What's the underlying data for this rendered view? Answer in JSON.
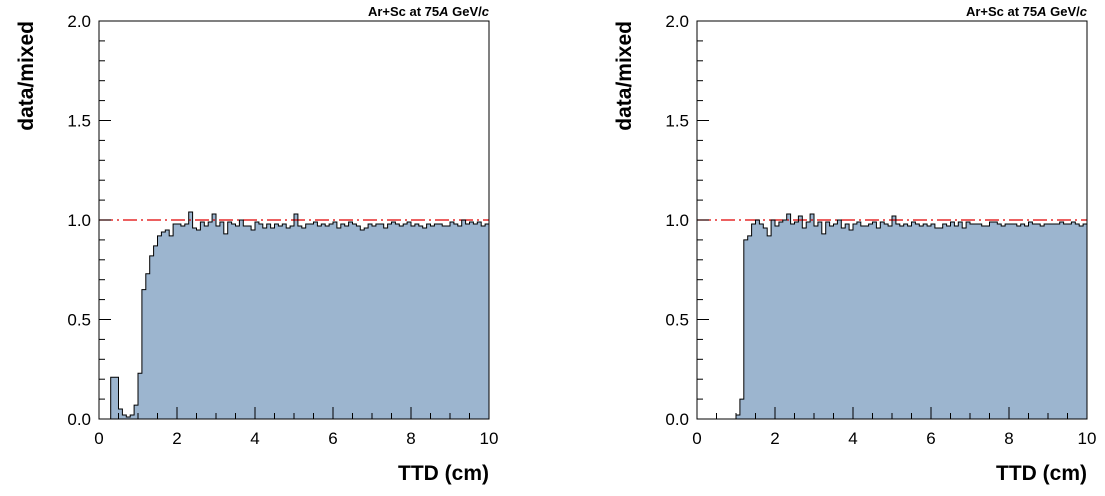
{
  "chart_data": [
    {
      "type": "area",
      "annotation": {
        "prefix": "Ar+Sc at 75",
        "italic_a": "A",
        "mid": " GeV/",
        "italic_c": "c"
      },
      "xlabel": "TTD (cm)",
      "ylabel": "data/mixed",
      "xlim": [
        0,
        10
      ],
      "ylim": [
        0,
        2
      ],
      "xticks": [
        "0",
        "2",
        "4",
        "6",
        "8",
        "10"
      ],
      "yticks": [
        "0.0",
        "0.5",
        "1.0",
        "1.5",
        "2.0"
      ],
      "reference_line": 1.0,
      "bin_width": 0.1,
      "values": [
        0,
        0,
        0,
        0.21,
        0.21,
        0.05,
        0.02,
        0.01,
        0.02,
        0.07,
        0.23,
        0.65,
        0.73,
        0.82,
        0.87,
        0.92,
        0.94,
        0.95,
        0.92,
        0.98,
        0.98,
        0.97,
        0.98,
        1.04,
        0.96,
        0.95,
        0.99,
        0.97,
        0.99,
        1.03,
        0.97,
        0.99,
        0.93,
        0.99,
        0.98,
        0.97,
        1.0,
        0.97,
        0.97,
        0.95,
        0.99,
        0.98,
        0.96,
        0.98,
        0.96,
        0.98,
        0.97,
        0.98,
        0.96,
        0.97,
        1.03,
        0.97,
        0.96,
        0.98,
        0.98,
        0.99,
        0.97,
        0.98,
        0.97,
        0.98,
        0.99,
        0.96,
        0.98,
        0.97,
        0.99,
        0.98,
        0.97,
        0.95,
        0.96,
        0.98,
        0.97,
        0.98,
        0.98,
        0.96,
        0.98,
        0.99,
        0.98,
        0.97,
        0.98,
        0.99,
        0.97,
        0.98,
        0.97,
        0.96,
        0.98,
        0.97,
        0.98,
        0.98,
        0.97,
        0.97,
        0.99,
        0.98,
        0.97,
        1.0,
        0.98,
        0.99,
        0.98,
        0.99,
        0.97,
        0.98
      ],
      "fill_color": "#9cb5cf",
      "line_color": "#000000",
      "reference_color": "#e00000"
    },
    {
      "type": "area",
      "annotation": {
        "prefix": "Ar+Sc at 75",
        "italic_a": "A",
        "mid": " GeV/",
        "italic_c": "c"
      },
      "xlabel": "TTD (cm)",
      "ylabel": "data/mixed",
      "xlim": [
        0,
        10
      ],
      "ylim": [
        0,
        2
      ],
      "xticks": [
        "0",
        "2",
        "4",
        "6",
        "8",
        "10"
      ],
      "yticks": [
        "0.0",
        "0.5",
        "1.0",
        "1.5",
        "2.0"
      ],
      "reference_line": 1.0,
      "bin_width": 0.1,
      "values": [
        0,
        0,
        0,
        0,
        0,
        0,
        0,
        0,
        0,
        0,
        0.02,
        0.1,
        0.9,
        0.92,
        0.98,
        1.0,
        0.98,
        0.96,
        0.92,
        1.0,
        0.97,
        0.99,
        1.0,
        1.03,
        0.98,
        0.99,
        1.02,
        0.96,
        0.99,
        1.03,
        0.97,
        0.99,
        0.93,
        0.99,
        0.97,
        0.98,
        1.0,
        0.96,
        0.98,
        0.95,
        0.98,
        0.99,
        0.97,
        0.97,
        0.98,
        0.99,
        0.96,
        0.99,
        0.98,
        0.97,
        1.02,
        0.98,
        0.97,
        0.98,
        0.97,
        0.99,
        0.98,
        0.97,
        0.98,
        0.97,
        0.98,
        0.96,
        0.96,
        0.98,
        0.97,
        0.99,
        0.97,
        0.99,
        0.96,
        0.99,
        0.98,
        0.98,
        0.98,
        0.97,
        0.97,
        0.99,
        0.99,
        0.98,
        0.97,
        0.98,
        0.98,
        0.98,
        0.97,
        0.98,
        0.97,
        0.99,
        0.98,
        0.98,
        0.97,
        0.98,
        0.98,
        0.98,
        0.98,
        0.99,
        0.98,
        0.98,
        0.99,
        0.98,
        0.97,
        0.98
      ],
      "fill_color": "#9cb5cf",
      "line_color": "#000000",
      "reference_color": "#e00000"
    }
  ]
}
